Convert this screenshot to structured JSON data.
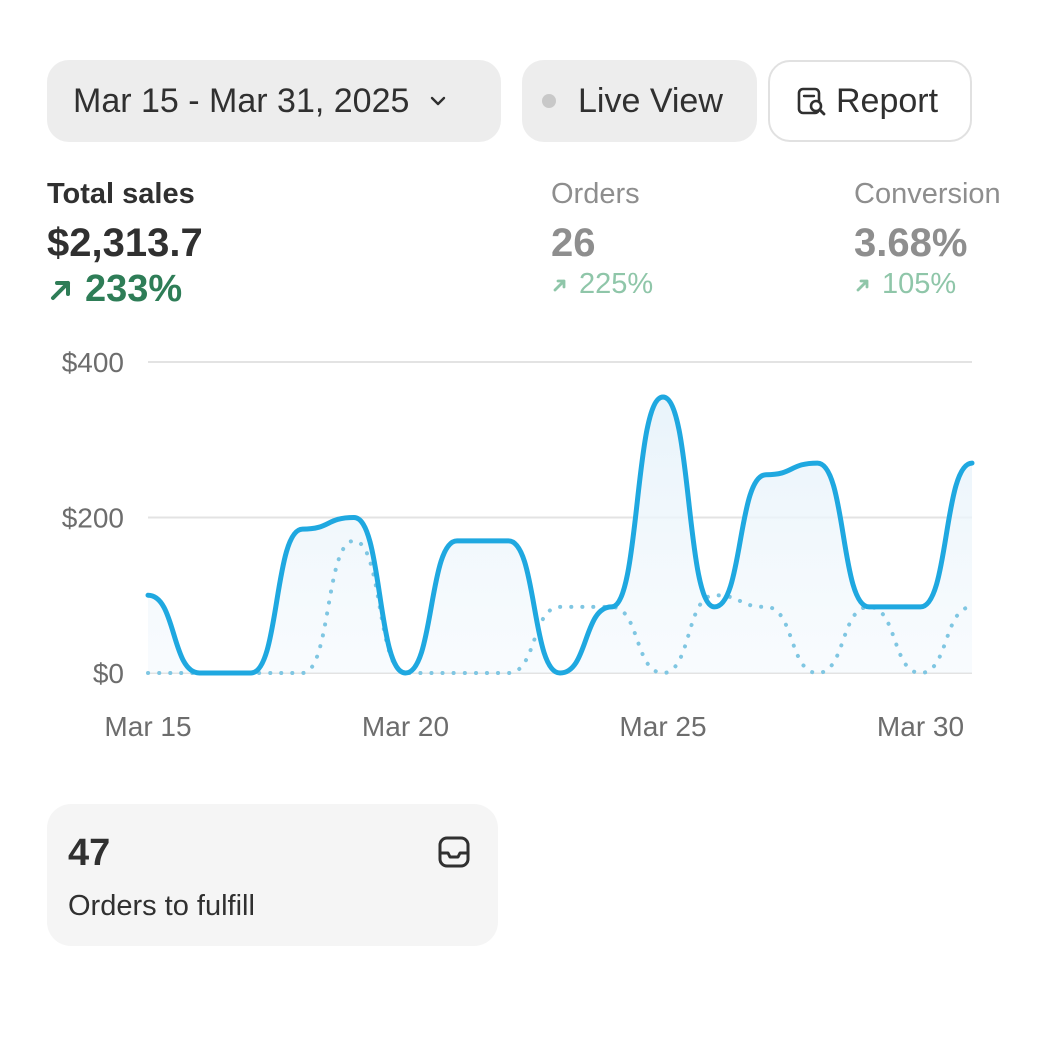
{
  "toolbar": {
    "date_range": "Mar 15 - Mar 31, 2025",
    "live_view": "Live View",
    "report": "Report"
  },
  "metrics": {
    "total_sales": {
      "label": "Total sales",
      "value": "$2,313.7",
      "change": "233%"
    },
    "orders": {
      "label": "Orders",
      "value": "26",
      "change": "225%"
    },
    "conversion": {
      "label": "Conversion",
      "value": "3.68%",
      "change": "105%"
    }
  },
  "chart_data": {
    "type": "line",
    "x": [
      "Mar 15",
      "Mar 16",
      "Mar 17",
      "Mar 18",
      "Mar 19",
      "Mar 20",
      "Mar 21",
      "Mar 22",
      "Mar 23",
      "Mar 24",
      "Mar 25",
      "Mar 26",
      "Mar 27",
      "Mar 28",
      "Mar 29",
      "Mar 30",
      "Mar 31"
    ],
    "x_tick_labels": [
      "Mar 15",
      "Mar 20",
      "Mar 25",
      "Mar 30"
    ],
    "y_tick_labels": [
      "$400",
      "$200",
      "$0"
    ],
    "ylim": [
      0,
      400
    ],
    "series": [
      {
        "values": [
          100,
          0,
          0,
          185,
          200,
          0,
          170,
          170,
          0,
          85,
          355,
          85,
          255,
          270,
          85,
          85,
          270
        ],
        "style": "solid",
        "color": "#1fa8e0"
      },
      {
        "values": [
          0,
          0,
          0,
          0,
          170,
          0,
          0,
          0,
          85,
          85,
          0,
          100,
          85,
          0,
          85,
          0,
          85
        ],
        "style": "dotted",
        "color": "#7fc6e2"
      }
    ],
    "grid": true
  },
  "fulfill_card": {
    "count": "47",
    "label": "Orders to fulfill"
  },
  "icons": {
    "chevron": "chevron-down-icon",
    "report": "report-search-icon",
    "arrow": "arrow-up-right-icon",
    "inbox": "inbox-icon"
  }
}
